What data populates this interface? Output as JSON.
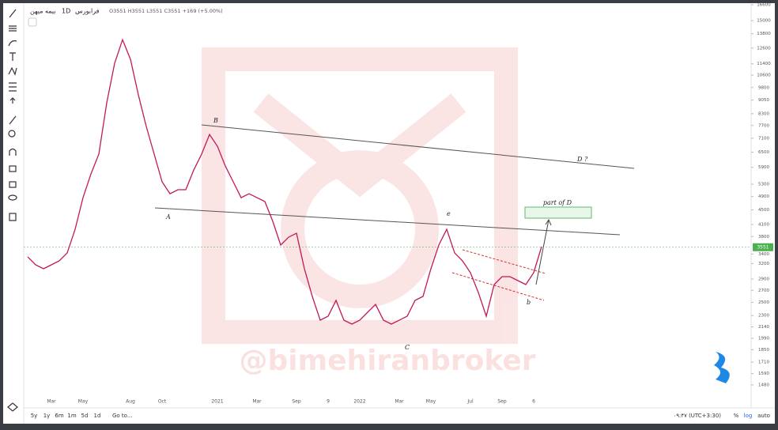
{
  "header": {
    "symbol": "بیمه میهن",
    "interval": "1D",
    "exchange": "فرابورس",
    "ohlc": "O3551 H3551 L3551 C3551 +169 (+5.00%)"
  },
  "chart_data": {
    "type": "line",
    "color": "#c2185b",
    "log_scale": true,
    "grid": false,
    "categories": [
      null,
      null,
      null,
      "Mar",
      null,
      null,
      null,
      "May",
      null,
      null,
      null,
      null,
      null,
      "Aug",
      null,
      null,
      null,
      "Oct",
      null,
      null,
      null,
      null,
      null,
      null,
      "2021",
      null,
      null,
      null,
      null,
      "Mar",
      null,
      null,
      null,
      null,
      "Sep",
      null,
      null,
      null,
      "9",
      null,
      null,
      null,
      "2022",
      null,
      null,
      null,
      null,
      "Mar",
      null,
      null,
      null,
      "May",
      null,
      null,
      null,
      null,
      "Jul",
      null,
      null,
      null,
      "Sep",
      null,
      null,
      null,
      "6",
      null
    ],
    "values": [
      3340,
      3175,
      3096,
      3175,
      3256,
      3425,
      3980,
      4865,
      5658,
      6417,
      8892,
      11439,
      13290,
      11730,
      9356,
      7651,
      6417,
      5382,
      4989,
      5119,
      5119,
      5801,
      6417,
      7272,
      6747,
      5949,
      5382,
      4865,
      4989,
      4865,
      4746,
      4187,
      3600,
      3785,
      3881,
      3096,
      2597,
      2233,
      2291,
      2532,
      2233,
      2178,
      2233,
      2349,
      2469,
      2233,
      2178,
      2233,
      2291,
      2532,
      2597,
      3096,
      3600,
      3980,
      3425,
      3256,
      3019,
      2662,
      2291,
      2800,
      2945,
      2945,
      2872,
      2800,
      3019,
      3564
    ],
    "ylim": [
      1285,
      16760
    ],
    "yticks": [
      1480,
      1590,
      1710,
      1850,
      1990,
      2140,
      2300,
      2500,
      2700,
      2900,
      3200,
      3400,
      3800,
      4100,
      4500,
      4900,
      5300,
      5900,
      6500,
      7100,
      7700,
      8300,
      9050,
      9800,
      10600,
      11400,
      12600,
      13800,
      15000,
      16600
    ],
    "last_price": 3551,
    "annotations": [
      "B",
      "A",
      "C",
      "e",
      "b",
      "part of D",
      "D ?"
    ]
  },
  "watermark": "@bimehiranbroker",
  "footer": {
    "ranges": [
      "5y",
      "1y",
      "6m",
      "1m",
      "5d",
      "1d"
    ],
    "goto": "Go to...",
    "time": "۰۹:۴۷ (UTC+3:30)",
    "percent": "%",
    "log": "log",
    "auto": "auto"
  }
}
